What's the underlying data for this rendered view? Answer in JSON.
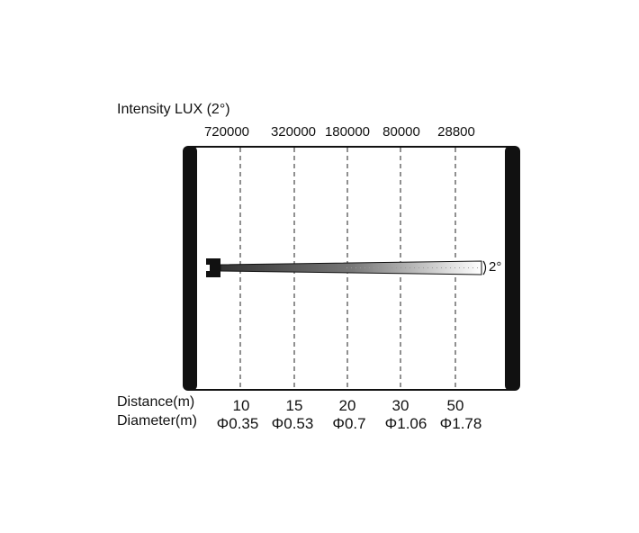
{
  "title": "Intensity LUX (2°)",
  "beam_angle": "2°",
  "distance_label": "Distance(m)",
  "diameter_label": "Diameter(m)",
  "columns": [
    {
      "lux": "720000",
      "distance": "10",
      "diameter": "Φ0.35"
    },
    {
      "lux": "320000",
      "distance": "15",
      "diameter": "Φ0.53"
    },
    {
      "lux": "180000",
      "distance": "20",
      "diameter": "Φ0.7"
    },
    {
      "lux": "80000",
      "distance": "30",
      "diameter": "Φ1.06"
    },
    {
      "lux": "28800",
      "distance": "50",
      "diameter": "Φ1.78"
    }
  ]
}
